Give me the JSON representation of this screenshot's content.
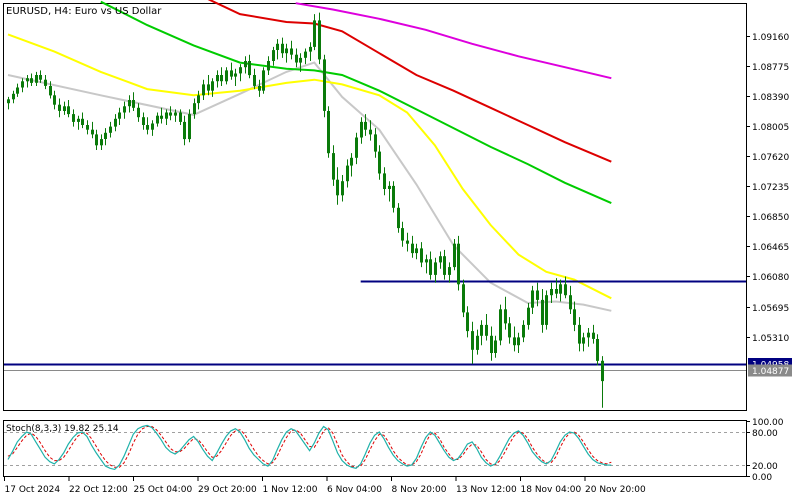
{
  "header": {
    "title": "EURUSD, H4:  Euro vs US Dollar"
  },
  "colors": {
    "background": "#ffffff",
    "frame": "#000000",
    "up": "#0a7a0a",
    "down": "#0a7a0a",
    "ma_fast": "#c8c8c8",
    "ma_yellow": "#ffff00",
    "ma_green": "#00cc00",
    "ma_red": "#dd0000",
    "ma_magenta": "#dd00dd",
    "level_line": "#000080",
    "price_line": "#8a8a8a",
    "stoch_main": "#20b2aa",
    "stoch_signal": "#dd0000",
    "stoch_level": "#a0a0a0",
    "price_tag_level_bg": "#000080",
    "price_tag_bid_bg": "#8a8a8a"
  },
  "chart_data": {
    "type": "candlestick",
    "symbol": "EURUSD",
    "timeframe": "H4",
    "title": "EURUSD, H4:  Euro vs US Dollar",
    "y_ticks": [
      "1.09160",
      "1.08775",
      "1.08390",
      "1.08005",
      "1.07620",
      "1.07235",
      "1.06850",
      "1.06465",
      "1.06080",
      "1.05695",
      "1.05310"
    ],
    "x_ticks": [
      "17 Oct 2024",
      "22 Oct 12:00",
      "25 Oct 04:00",
      "29 Oct 20:00",
      "1 Nov 12:00",
      "6 Nov 04:00",
      "8 Nov 20:00",
      "13 Nov 12:00",
      "18 Nov 04:00",
      "20 Nov 20:00"
    ],
    "ylim": [
      1.0437,
      1.0957
    ],
    "grid": false,
    "candles": [
      [
        1.083,
        1.0838,
        1.0822,
        1.0835
      ],
      [
        1.0835,
        1.0846,
        1.083,
        1.0842
      ],
      [
        1.0842,
        1.0855,
        1.0838,
        1.085
      ],
      [
        1.085,
        1.0862,
        1.0844,
        1.0858
      ],
      [
        1.0858,
        1.0866,
        1.085,
        1.0862
      ],
      [
        1.0862,
        1.0868,
        1.0852,
        1.0856
      ],
      [
        1.0856,
        1.087,
        1.0852,
        1.0866
      ],
      [
        1.0866,
        1.0872,
        1.0856,
        1.086
      ],
      [
        1.086,
        1.0866,
        1.0848,
        1.0852
      ],
      [
        1.0852,
        1.0858,
        1.0836,
        1.084
      ],
      [
        1.084,
        1.0846,
        1.0822,
        1.0828
      ],
      [
        1.0828,
        1.0836,
        1.0812,
        1.082
      ],
      [
        1.082,
        1.0832,
        1.0815,
        1.0826
      ],
      [
        1.0826,
        1.0834,
        1.0812,
        1.0816
      ],
      [
        1.0816,
        1.0822,
        1.08,
        1.0806
      ],
      [
        1.0806,
        1.0814,
        1.0796,
        1.081
      ],
      [
        1.081,
        1.0818,
        1.0798,
        1.0802
      ],
      [
        1.0802,
        1.0808,
        1.079,
        1.0796
      ],
      [
        1.0796,
        1.0806,
        1.0785,
        1.079
      ],
      [
        1.079,
        1.0796,
        1.077,
        1.0776
      ],
      [
        1.0776,
        1.079,
        1.077,
        1.0784
      ],
      [
        1.0784,
        1.0798,
        1.0776,
        1.0792
      ],
      [
        1.0792,
        1.0806,
        1.0786,
        1.08
      ],
      [
        1.08,
        1.0816,
        1.0794,
        1.081
      ],
      [
        1.081,
        1.0824,
        1.0802,
        1.0818
      ],
      [
        1.0818,
        1.0832,
        1.081,
        1.0826
      ],
      [
        1.0826,
        1.084,
        1.0818,
        1.0834
      ],
      [
        1.0834,
        1.0844,
        1.082,
        1.0824
      ],
      [
        1.0824,
        1.083,
        1.0806,
        1.0812
      ],
      [
        1.0812,
        1.0818,
        1.0796,
        1.0802
      ],
      [
        1.0802,
        1.0812,
        1.079,
        1.0796
      ],
      [
        1.0796,
        1.0808,
        1.0788,
        1.0804
      ],
      [
        1.0804,
        1.0818,
        1.08,
        1.0814
      ],
      [
        1.0814,
        1.0824,
        1.0804,
        1.081
      ],
      [
        1.081,
        1.0822,
        1.0802,
        1.0818
      ],
      [
        1.0818,
        1.0826,
        1.0808,
        1.0814
      ],
      [
        1.0814,
        1.0822,
        1.0806,
        1.0818
      ],
      [
        1.0818,
        1.0822,
        1.0802,
        1.0806
      ],
      [
        1.0806,
        1.0814,
        1.0776,
        1.0784
      ],
      [
        1.0784,
        1.0822,
        1.078,
        1.0816
      ],
      [
        1.0816,
        1.0836,
        1.081,
        1.083
      ],
      [
        1.083,
        1.0846,
        1.0822,
        1.084
      ],
      [
        1.084,
        1.086,
        1.0834,
        1.0854
      ],
      [
        1.0854,
        1.0866,
        1.084,
        1.0846
      ],
      [
        1.0846,
        1.0862,
        1.0838,
        1.0858
      ],
      [
        1.0858,
        1.0872,
        1.085,
        1.0866
      ],
      [
        1.0866,
        1.0876,
        1.0852,
        1.0858
      ],
      [
        1.0858,
        1.0876,
        1.0854,
        1.0872
      ],
      [
        1.0872,
        1.0882,
        1.086,
        1.0864
      ],
      [
        1.0864,
        1.0874,
        1.0852,
        1.0868
      ],
      [
        1.0868,
        1.088,
        1.0858,
        1.0876
      ],
      [
        1.0876,
        1.089,
        1.0868,
        1.0884
      ],
      [
        1.0884,
        1.0892,
        1.0862,
        1.0866
      ],
      [
        1.0866,
        1.0874,
        1.0848,
        1.0852
      ],
      [
        1.0852,
        1.086,
        1.0838,
        1.0846
      ],
      [
        1.0846,
        1.0876,
        1.0842,
        1.0872
      ],
      [
        1.0872,
        1.089,
        1.0866,
        1.0884
      ],
      [
        1.0884,
        1.0902,
        1.0878,
        1.0898
      ],
      [
        1.0898,
        1.0912,
        1.0886,
        1.0906
      ],
      [
        1.0906,
        1.0914,
        1.0888,
        1.0894
      ],
      [
        1.0894,
        1.0906,
        1.0882,
        1.09
      ],
      [
        1.09,
        1.091,
        1.0886,
        1.0892
      ],
      [
        1.0892,
        1.09,
        1.0876,
        1.0882
      ],
      [
        1.0882,
        1.0894,
        1.087,
        1.0888
      ],
      [
        1.0888,
        1.09,
        1.088,
        1.0896
      ],
      [
        1.0896,
        1.0908,
        1.0884,
        1.0902
      ],
      [
        1.0902,
        1.0944,
        1.0898,
        1.0936
      ],
      [
        1.0936,
        1.0946,
        1.088,
        1.0886
      ],
      [
        1.0886,
        1.0892,
        1.0812,
        1.082
      ],
      [
        1.082,
        1.0826,
        1.076,
        1.0766
      ],
      [
        1.0766,
        1.0776,
        1.0724,
        1.0732
      ],
      [
        1.0732,
        1.0748,
        1.07,
        1.0712
      ],
      [
        1.0712,
        1.0738,
        1.0704,
        1.073
      ],
      [
        1.073,
        1.0758,
        1.0722,
        1.075
      ],
      [
        1.075,
        1.0766,
        1.0736,
        1.076
      ],
      [
        1.076,
        1.0792,
        1.0752,
        1.0786
      ],
      [
        1.0786,
        1.0812,
        1.0778,
        1.0806
      ],
      [
        1.0806,
        1.0816,
        1.0788,
        1.0796
      ],
      [
        1.0796,
        1.0808,
        1.0782,
        1.079
      ],
      [
        1.079,
        1.0798,
        1.076,
        1.0768
      ],
      [
        1.0768,
        1.0776,
        1.0732,
        1.074
      ],
      [
        1.074,
        1.0748,
        1.0712,
        1.072
      ],
      [
        1.072,
        1.073,
        1.0704,
        1.0724
      ],
      [
        1.0724,
        1.073,
        1.069,
        1.0696
      ],
      [
        1.0696,
        1.0702,
        1.0664,
        1.067
      ],
      [
        1.067,
        1.0678,
        1.0646,
        1.0654
      ],
      [
        1.0654,
        1.0664,
        1.064,
        1.065
      ],
      [
        1.065,
        1.066,
        1.0632,
        1.0638
      ],
      [
        1.0638,
        1.065,
        1.063,
        1.0644
      ],
      [
        1.0644,
        1.0652,
        1.062,
        1.0626
      ],
      [
        1.0626,
        1.0636,
        1.0612,
        1.063
      ],
      [
        1.063,
        1.064,
        1.0604,
        1.061
      ],
      [
        1.061,
        1.0632,
        1.06,
        1.0626
      ],
      [
        1.0626,
        1.064,
        1.0618,
        1.0634
      ],
      [
        1.0634,
        1.0642,
        1.0604,
        1.061
      ],
      [
        1.061,
        1.0626,
        1.06,
        1.062
      ],
      [
        1.062,
        1.0656,
        1.0616,
        1.065
      ],
      [
        1.065,
        1.066,
        1.059,
        1.0598
      ],
      [
        1.0598,
        1.0604,
        1.0556,
        1.0562
      ],
      [
        1.0562,
        1.057,
        1.053,
        1.0538
      ],
      [
        1.0538,
        1.055,
        1.0496,
        1.0514
      ],
      [
        1.0514,
        1.054,
        1.0508,
        1.0532
      ],
      [
        1.0532,
        1.0552,
        1.052,
        1.0546
      ],
      [
        1.0546,
        1.056,
        1.0526,
        1.0532
      ],
      [
        1.0532,
        1.0544,
        1.05,
        1.051
      ],
      [
        1.051,
        1.0532,
        1.0504,
        1.0526
      ],
      [
        1.0526,
        1.0572,
        1.052,
        1.0566
      ],
      [
        1.0566,
        1.0582,
        1.054,
        1.0548
      ],
      [
        1.0548,
        1.0556,
        1.0522,
        1.053
      ],
      [
        1.053,
        1.0544,
        1.0512,
        1.052
      ],
      [
        1.052,
        1.0536,
        1.051,
        1.053
      ],
      [
        1.053,
        1.0552,
        1.0524,
        1.0546
      ],
      [
        1.0546,
        1.0574,
        1.054,
        1.0568
      ],
      [
        1.0568,
        1.0596,
        1.056,
        1.059
      ],
      [
        1.059,
        1.06,
        1.057,
        1.0578
      ],
      [
        1.0578,
        1.0592,
        1.0536,
        1.0546
      ],
      [
        1.0546,
        1.059,
        1.054,
        1.0584
      ],
      [
        1.0584,
        1.06,
        1.0574,
        1.0592
      ],
      [
        1.0592,
        1.0606,
        1.058,
        1.0586
      ],
      [
        1.0586,
        1.0604,
        1.0576,
        1.0598
      ],
      [
        1.0598,
        1.0608,
        1.058,
        1.0584
      ],
      [
        1.0584,
        1.0596,
        1.056,
        1.0566
      ],
      [
        1.0566,
        1.0576,
        1.0538,
        1.0546
      ],
      [
        1.0546,
        1.0556,
        1.0512,
        1.0522
      ],
      [
        1.0522,
        1.0536,
        1.0512,
        1.053
      ],
      [
        1.053,
        1.0542,
        1.0518,
        1.0536
      ],
      [
        1.0536,
        1.0546,
        1.0522,
        1.0528
      ],
      [
        1.0528,
        1.0534,
        1.0494,
        1.05
      ],
      [
        1.05,
        1.0506,
        1.044,
        1.0474
      ]
    ],
    "moving_averages": [
      {
        "color": "#c8c8c8",
        "points": [
          [
            0,
            1.0866
          ],
          [
            20,
            1.084
          ],
          [
            40,
            1.0815
          ],
          [
            50,
            1.0842
          ],
          [
            60,
            1.087
          ],
          [
            66,
            1.0882
          ],
          [
            72,
            1.0838
          ],
          [
            80,
            1.0796
          ],
          [
            88,
            1.0726
          ],
          [
            96,
            1.0648
          ],
          [
            104,
            1.06
          ],
          [
            112,
            1.0574
          ],
          [
            118,
            1.0576
          ],
          [
            124,
            1.0572
          ],
          [
            130,
            1.0564
          ]
        ]
      },
      {
        "color": "#ffff00",
        "points": [
          [
            0,
            1.0918
          ],
          [
            10,
            1.0896
          ],
          [
            20,
            1.087
          ],
          [
            30,
            1.0848
          ],
          [
            40,
            1.084
          ],
          [
            50,
            1.0846
          ],
          [
            60,
            1.0856
          ],
          [
            66,
            1.086
          ],
          [
            72,
            1.0854
          ],
          [
            80,
            1.084
          ],
          [
            86,
            1.0818
          ],
          [
            92,
            1.0776
          ],
          [
            98,
            1.072
          ],
          [
            104,
            1.0674
          ],
          [
            110,
            1.0636
          ],
          [
            116,
            1.0614
          ],
          [
            122,
            1.0604
          ],
          [
            130,
            1.058
          ]
        ]
      },
      {
        "color": "#00cc00",
        "points": [
          [
            20,
            1.096
          ],
          [
            30,
            1.093
          ],
          [
            40,
            1.0904
          ],
          [
            50,
            1.0882
          ],
          [
            60,
            1.0874
          ],
          [
            66,
            1.0872
          ],
          [
            72,
            1.0866
          ],
          [
            80,
            1.0846
          ],
          [
            88,
            1.0822
          ],
          [
            96,
            1.0798
          ],
          [
            104,
            1.0774
          ],
          [
            112,
            1.0752
          ],
          [
            120,
            1.0728
          ],
          [
            130,
            1.0702
          ]
        ]
      },
      {
        "color": "#dd0000",
        "points": [
          [
            40,
            1.0972
          ],
          [
            50,
            1.0944
          ],
          [
            60,
            1.0934
          ],
          [
            66,
            1.0932
          ],
          [
            72,
            1.0922
          ],
          [
            80,
            1.0894
          ],
          [
            88,
            1.0866
          ],
          [
            96,
            1.0846
          ],
          [
            104,
            1.0824
          ],
          [
            112,
            1.0802
          ],
          [
            120,
            1.078
          ],
          [
            130,
            1.0755
          ]
        ]
      },
      {
        "color": "#dd00dd",
        "points": [
          [
            62,
            1.0958
          ],
          [
            70,
            1.095
          ],
          [
            80,
            1.0938
          ],
          [
            90,
            1.0924
          ],
          [
            100,
            1.0906
          ],
          [
            110,
            1.089
          ],
          [
            120,
            1.0876
          ],
          [
            130,
            1.0862
          ]
        ]
      }
    ],
    "levels": [
      {
        "price": 1.0602,
        "from_index": 76,
        "to_index": 130
      },
      {
        "price": 1.04958,
        "from_index": 0,
        "to_index": 131,
        "label": "1.04958"
      }
    ],
    "bid": {
      "price": 1.04877,
      "label": "1.04877"
    },
    "stochastic": {
      "title": "Stoch(8,3,3) 19.82 25.14",
      "name": "Stoch(8,3,3)",
      "main": 19.82,
      "signal": 25.14,
      "levels": [
        80,
        20
      ],
      "y_ticks": [
        "100.00",
        "80.00",
        "20.00",
        "0.00"
      ],
      "main_series": [
        30,
        45,
        62,
        72,
        80,
        76,
        62,
        48,
        34,
        26,
        22,
        30,
        42,
        58,
        70,
        78,
        80,
        72,
        56,
        42,
        30,
        18,
        14,
        12,
        20,
        36,
        56,
        76,
        86,
        90,
        92,
        88,
        78,
        66,
        52,
        44,
        40,
        46,
        56,
        66,
        72,
        62,
        48,
        36,
        28,
        42,
        58,
        72,
        82,
        86,
        80,
        66,
        50,
        38,
        30,
        22,
        18,
        28,
        48,
        66,
        80,
        86,
        82,
        70,
        58,
        46,
        60,
        78,
        90,
        84,
        64,
        42,
        28,
        20,
        16,
        14,
        22,
        40,
        60,
        74,
        80,
        68,
        52,
        38,
        28,
        22,
        18,
        20,
        32,
        52,
        70,
        80,
        74,
        60,
        46,
        34,
        28,
        32,
        44,
        58,
        62,
        50,
        34,
        24,
        18,
        22,
        36,
        52,
        68,
        78,
        82,
        74,
        60,
        44,
        34,
        26,
        22,
        28,
        44,
        62,
        74,
        80,
        78,
        68,
        54,
        40,
        30,
        24,
        22,
        20,
        19.82
      ],
      "signal_series": [
        36,
        40,
        52,
        64,
        74,
        78,
        72,
        60,
        46,
        34,
        28,
        28,
        34,
        46,
        60,
        72,
        78,
        78,
        68,
        54,
        40,
        28,
        20,
        16,
        16,
        24,
        40,
        60,
        76,
        86,
        90,
        90,
        84,
        74,
        62,
        50,
        44,
        44,
        50,
        60,
        68,
        66,
        56,
        44,
        34,
        36,
        46,
        60,
        74,
        82,
        84,
        76,
        62,
        48,
        36,
        28,
        22,
        24,
        36,
        54,
        70,
        82,
        84,
        78,
        66,
        54,
        52,
        66,
        82,
        88,
        78,
        58,
        38,
        26,
        18,
        16,
        18,
        30,
        48,
        64,
        76,
        74,
        62,
        46,
        34,
        26,
        20,
        20,
        26,
        40,
        60,
        76,
        78,
        68,
        52,
        40,
        30,
        30,
        38,
        50,
        58,
        56,
        44,
        30,
        22,
        20,
        28,
        42,
        58,
        72,
        80,
        78,
        68,
        52,
        40,
        30,
        24,
        24,
        34,
        52,
        68,
        78,
        80,
        74,
        62,
        48,
        36,
        28,
        24,
        22,
        25.14
      ]
    }
  }
}
